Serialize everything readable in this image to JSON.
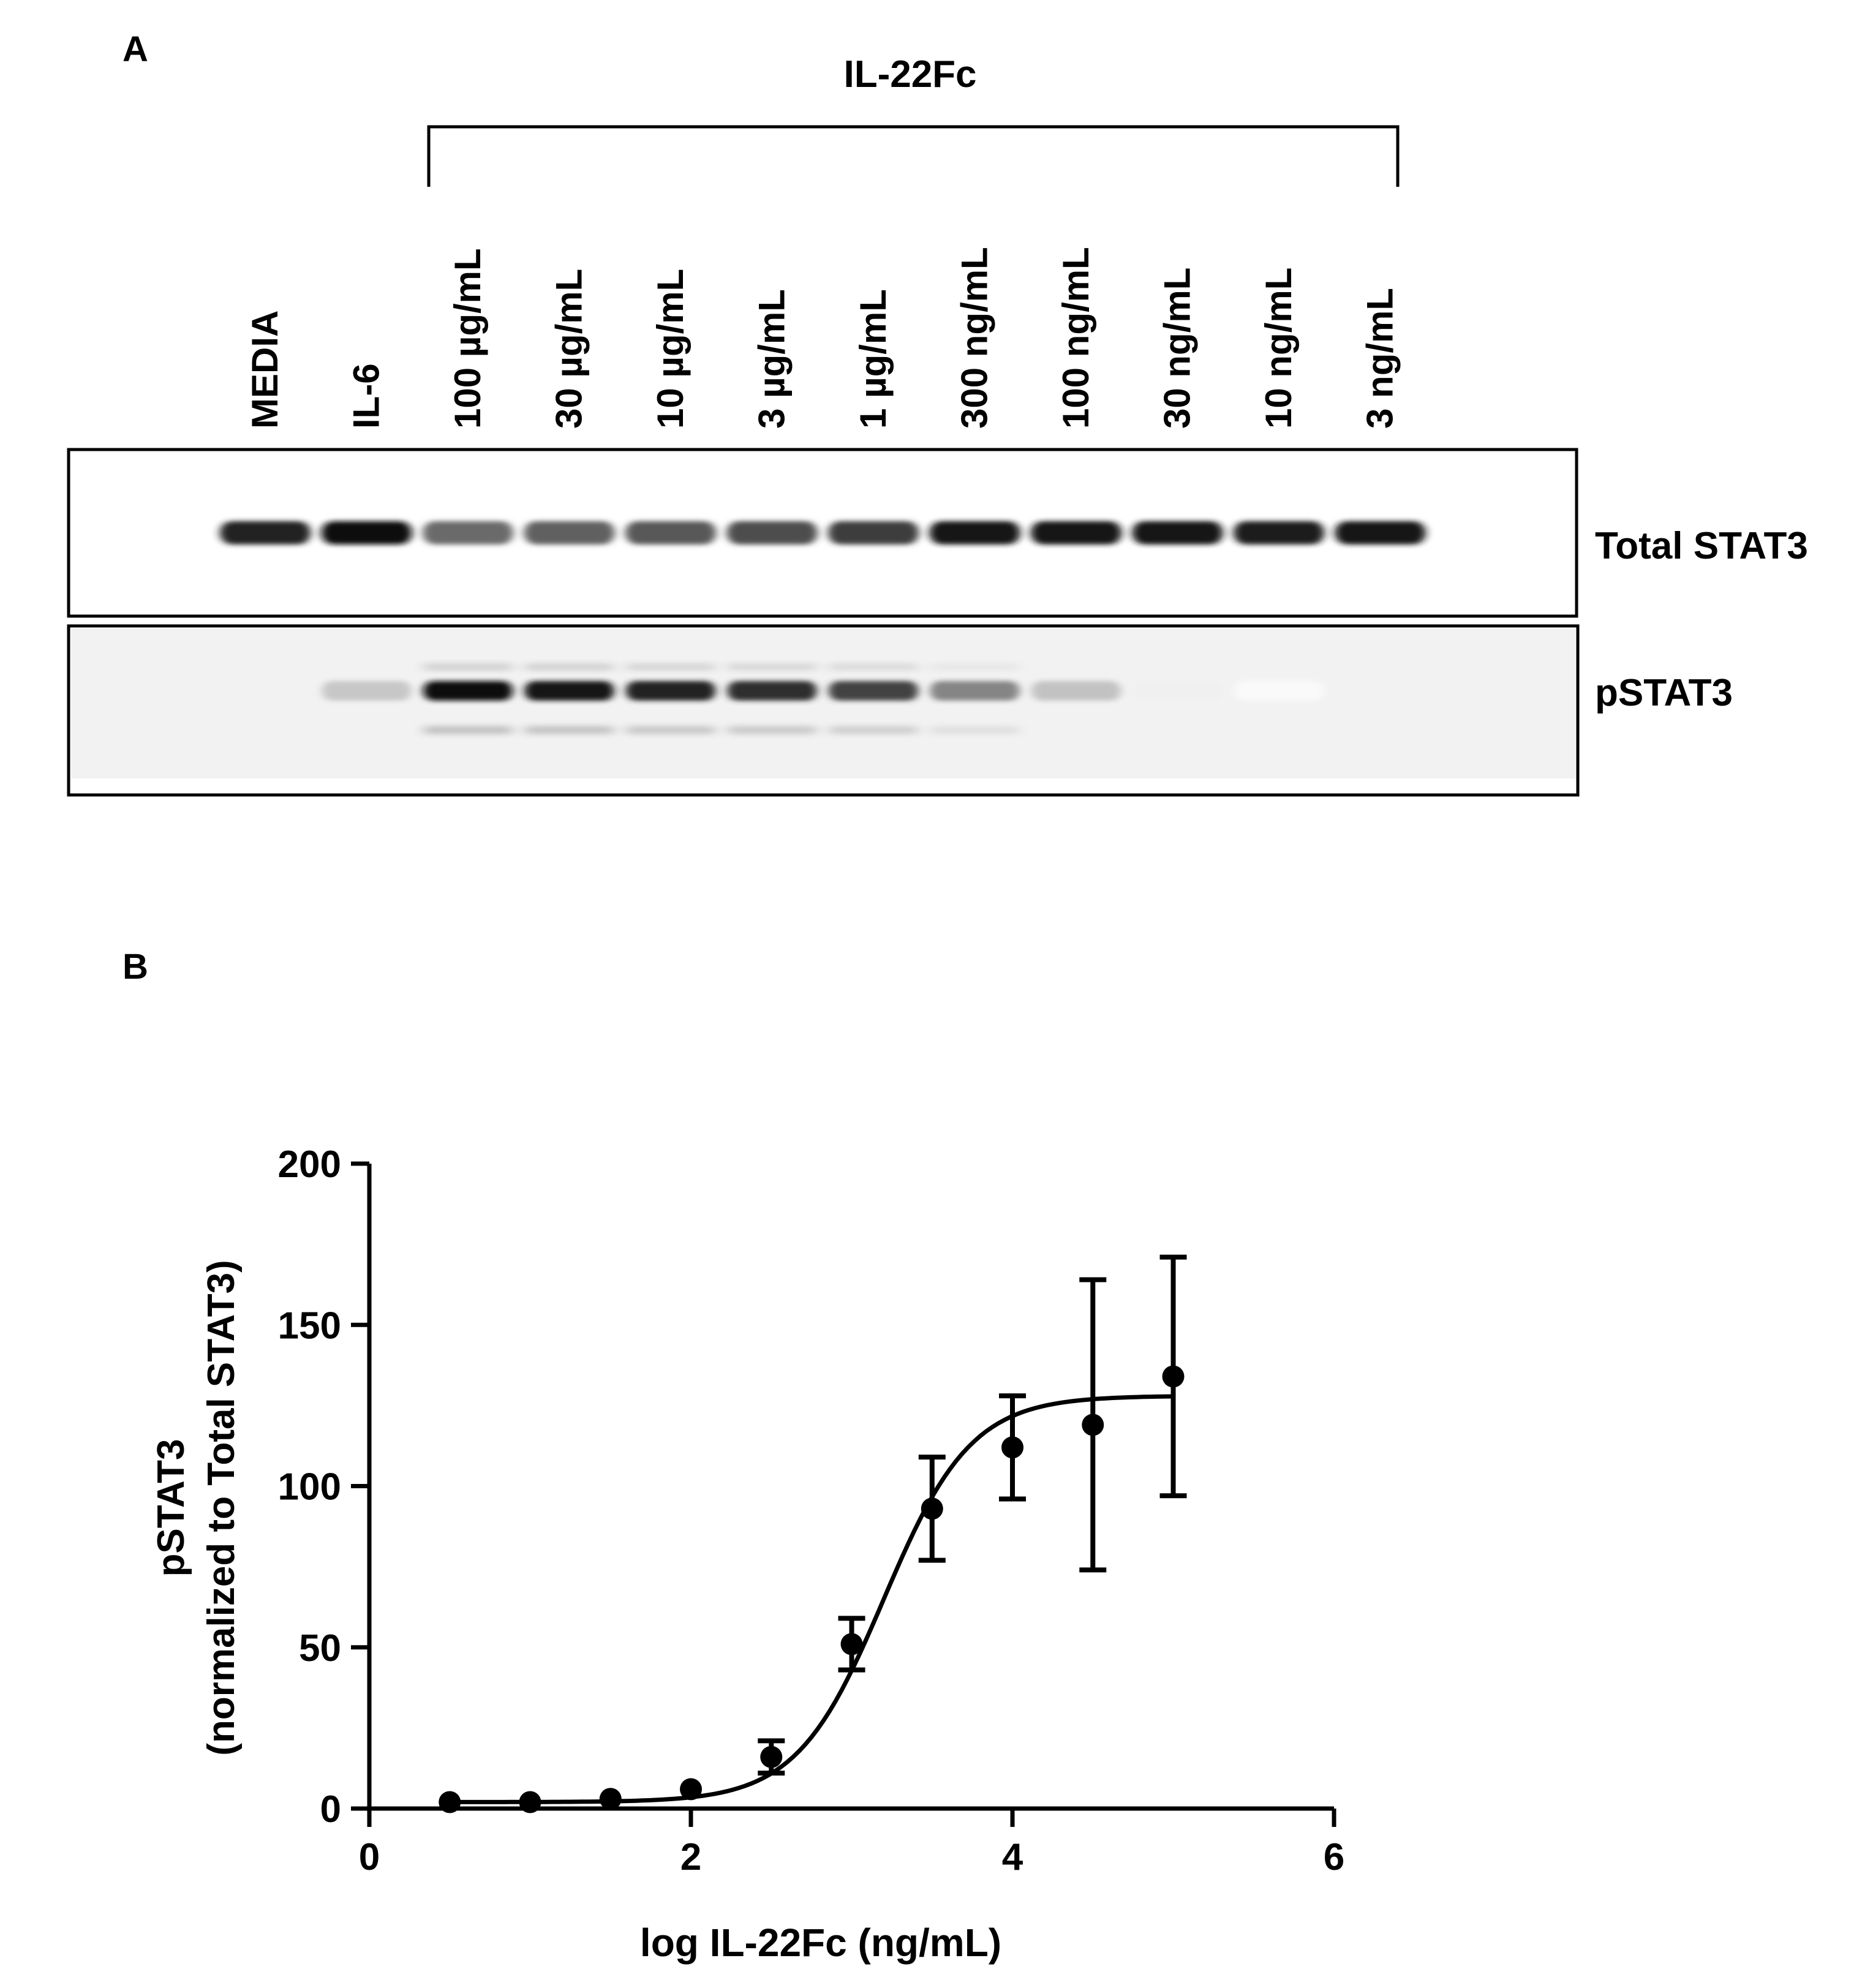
{
  "panel_a": {
    "letter": "A",
    "group_label": "IL-22Fc",
    "lanes": [
      "MEDIA",
      "IL-6",
      "100  µg/mL",
      "30  µg/mL",
      "10  µg/mL",
      "3  µg/mL",
      "1  µg/mL",
      "300  ng/mL",
      "100  ng/mL",
      "30  ng/mL",
      "10  ng/mL",
      "3  ng/mL"
    ],
    "blots": [
      {
        "label": "Total STAT3",
        "band_intensity": [
          0.86,
          0.94,
          0.58,
          0.62,
          0.65,
          0.7,
          0.76,
          0.92,
          0.9,
          0.9,
          0.88,
          0.91
        ]
      },
      {
        "label": "pSTAT3",
        "band_intensity": [
          0.0,
          0.22,
          0.95,
          0.92,
          0.86,
          0.82,
          0.74,
          0.48,
          0.24,
          0.06,
          0.02,
          0.0
        ]
      }
    ]
  },
  "panel_b": {
    "letter": "B"
  },
  "chart_data": {
    "type": "scatter",
    "xlabel": "log IL-22Fc (ng/mL)",
    "ylabel_line1": "pSTAT3",
    "ylabel_line2": "(normalized to Total STAT3)",
    "xlim": [
      0,
      6
    ],
    "ylim": [
      0,
      200
    ],
    "x_ticks": [
      0,
      2,
      4,
      6
    ],
    "y_ticks": [
      0,
      50,
      100,
      150,
      200
    ],
    "points": [
      {
        "x": 0.5,
        "y": 2,
        "err": 0
      },
      {
        "x": 1.0,
        "y": 2,
        "err": 0
      },
      {
        "x": 1.5,
        "y": 3,
        "err": 0
      },
      {
        "x": 2.0,
        "y": 6,
        "err": 0
      },
      {
        "x": 2.5,
        "y": 16,
        "err": 5
      },
      {
        "x": 3.0,
        "y": 51,
        "err": 8
      },
      {
        "x": 3.5,
        "y": 93,
        "err": 16
      },
      {
        "x": 4.0,
        "y": 112,
        "err": 16
      },
      {
        "x": 4.5,
        "y": 119,
        "err": 45
      },
      {
        "x": 5.0,
        "y": 134,
        "err": 37
      }
    ],
    "fit": {
      "bottom": 2,
      "top": 128,
      "logEC50": 3.2,
      "hill": 1.6,
      "x_range": [
        0.5,
        5.0
      ]
    }
  }
}
